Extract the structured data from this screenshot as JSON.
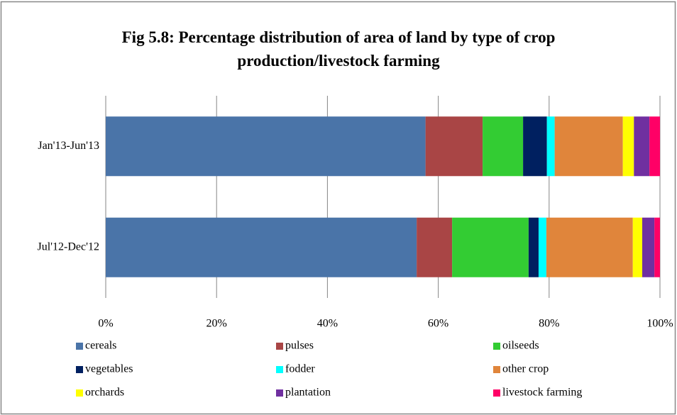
{
  "chart_data": {
    "type": "stacked_bar_horizontal",
    "title": "Fig 5.8: Percentage distribution of area of land by type of crop production/livestock farming",
    "categories": [
      "Jan'13-Jun'13",
      "Jul'12-Dec'12"
    ],
    "series": [
      {
        "name": "cereals",
        "color": "#4a74a8",
        "values": [
          57.7,
          56.1
        ]
      },
      {
        "name": "pulses",
        "color": "#a94545",
        "values": [
          10.3,
          6.4
        ]
      },
      {
        "name": "oilseeds",
        "color": "#33cc33",
        "values": [
          7.3,
          13.8
        ]
      },
      {
        "name": "vegetables",
        "color": "#002060",
        "values": [
          4.3,
          1.8
        ]
      },
      {
        "name": "fodder",
        "color": "#00ffff",
        "values": [
          1.4,
          1.4
        ]
      },
      {
        "name": "other crop",
        "color": "#e0853b",
        "values": [
          12.3,
          15.6
        ]
      },
      {
        "name": "orchards",
        "color": "#ffff00",
        "values": [
          2.0,
          1.7
        ]
      },
      {
        "name": "plantation",
        "color": "#7030a0",
        "values": [
          2.8,
          2.2
        ]
      },
      {
        "name": "livestock farming",
        "color": "#ff0066",
        "values": [
          1.9,
          1.0
        ]
      }
    ],
    "xlim": [
      0,
      100
    ],
    "xticks": [
      {
        "value": 0,
        "label": "0%"
      },
      {
        "value": 20,
        "label": "20%"
      },
      {
        "value": 40,
        "label": "40%"
      },
      {
        "value": 60,
        "label": "60%"
      },
      {
        "value": 80,
        "label": "80%"
      },
      {
        "value": 100,
        "label": "100%"
      }
    ],
    "grid": true,
    "legend": "bottom"
  }
}
